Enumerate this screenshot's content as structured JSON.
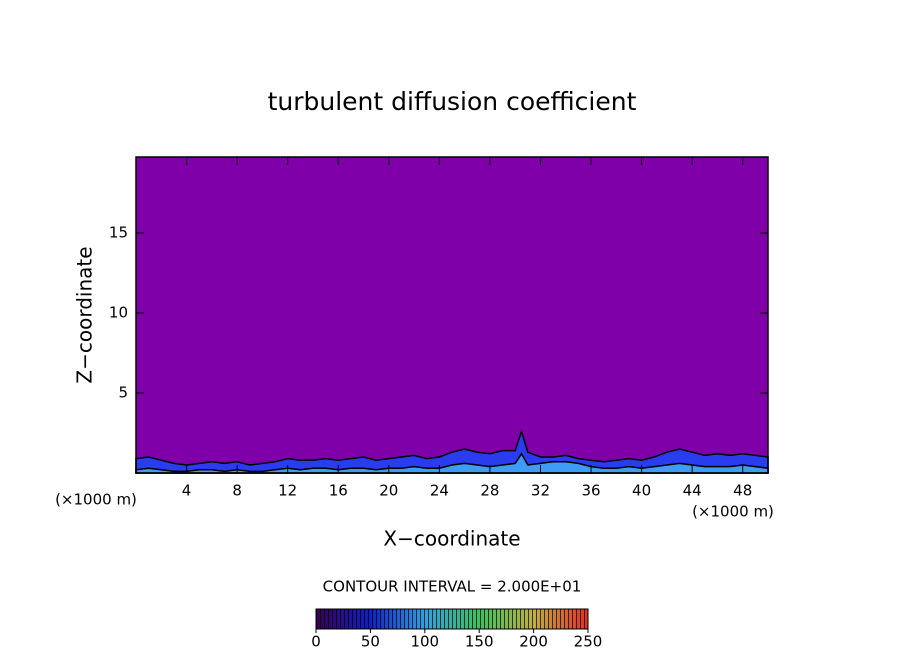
{
  "chart_data": {
    "type": "contour",
    "title": "turbulent diffusion coefficient",
    "xlabel": "X−coordinate",
    "ylabel": "Z−coordinate",
    "x_unit": "(×1000 m)",
    "y_unit": "(×1000 m)",
    "background_color": "#7f00a8",
    "xlim": [
      0,
      50
    ],
    "ylim": [
      0,
      19.75
    ],
    "xticks": [
      4,
      8,
      12,
      16,
      20,
      24,
      28,
      32,
      36,
      40,
      44,
      48
    ],
    "yticks": [
      5,
      10,
      15
    ],
    "x": [
      0,
      1,
      2,
      3,
      4,
      5,
      6,
      7,
      8,
      9,
      10,
      11,
      12,
      13,
      14,
      15,
      16,
      17,
      18,
      19,
      20,
      21,
      22,
      23,
      24,
      25,
      26,
      27,
      28,
      29,
      30,
      30.5,
      31,
      32,
      33,
      34,
      35,
      36,
      37,
      38,
      39,
      40,
      41,
      42,
      43,
      44,
      45,
      46,
      47,
      48,
      49,
      50
    ],
    "series": [
      {
        "color": "#2a3cf0",
        "values": [
          0.9,
          1.0,
          0.8,
          0.6,
          0.5,
          0.6,
          0.7,
          0.6,
          0.7,
          0.5,
          0.6,
          0.7,
          0.9,
          0.8,
          0.8,
          0.9,
          0.8,
          0.9,
          1.0,
          0.8,
          0.9,
          1.0,
          1.1,
          0.9,
          1.0,
          1.3,
          1.5,
          1.3,
          1.2,
          1.4,
          1.4,
          2.6,
          1.3,
          1.0,
          1.0,
          1.1,
          0.9,
          0.8,
          0.7,
          0.8,
          0.9,
          0.8,
          1.0,
          1.3,
          1.5,
          1.3,
          1.1,
          1.2,
          1.1,
          1.2,
          1.1,
          1.0
        ]
      },
      {
        "color": "#3f9cf5",
        "values": [
          0.2,
          0.3,
          0.2,
          0.1,
          0.1,
          0.2,
          0.2,
          0.1,
          0.2,
          0.1,
          0.1,
          0.2,
          0.3,
          0.2,
          0.3,
          0.3,
          0.2,
          0.3,
          0.3,
          0.2,
          0.3,
          0.3,
          0.4,
          0.3,
          0.3,
          0.5,
          0.6,
          0.5,
          0.4,
          0.5,
          0.6,
          1.2,
          0.5,
          0.6,
          0.7,
          0.7,
          0.6,
          0.4,
          0.3,
          0.3,
          0.4,
          0.3,
          0.4,
          0.5,
          0.6,
          0.5,
          0.4,
          0.4,
          0.4,
          0.5,
          0.4,
          0.3
        ]
      }
    ],
    "contour_label": "CONTOUR INTERVAL = 2.000E+01",
    "colorbar": {
      "lim": [
        0,
        250
      ],
      "ticks": [
        0,
        50,
        100,
        150,
        200,
        250
      ]
    }
  }
}
